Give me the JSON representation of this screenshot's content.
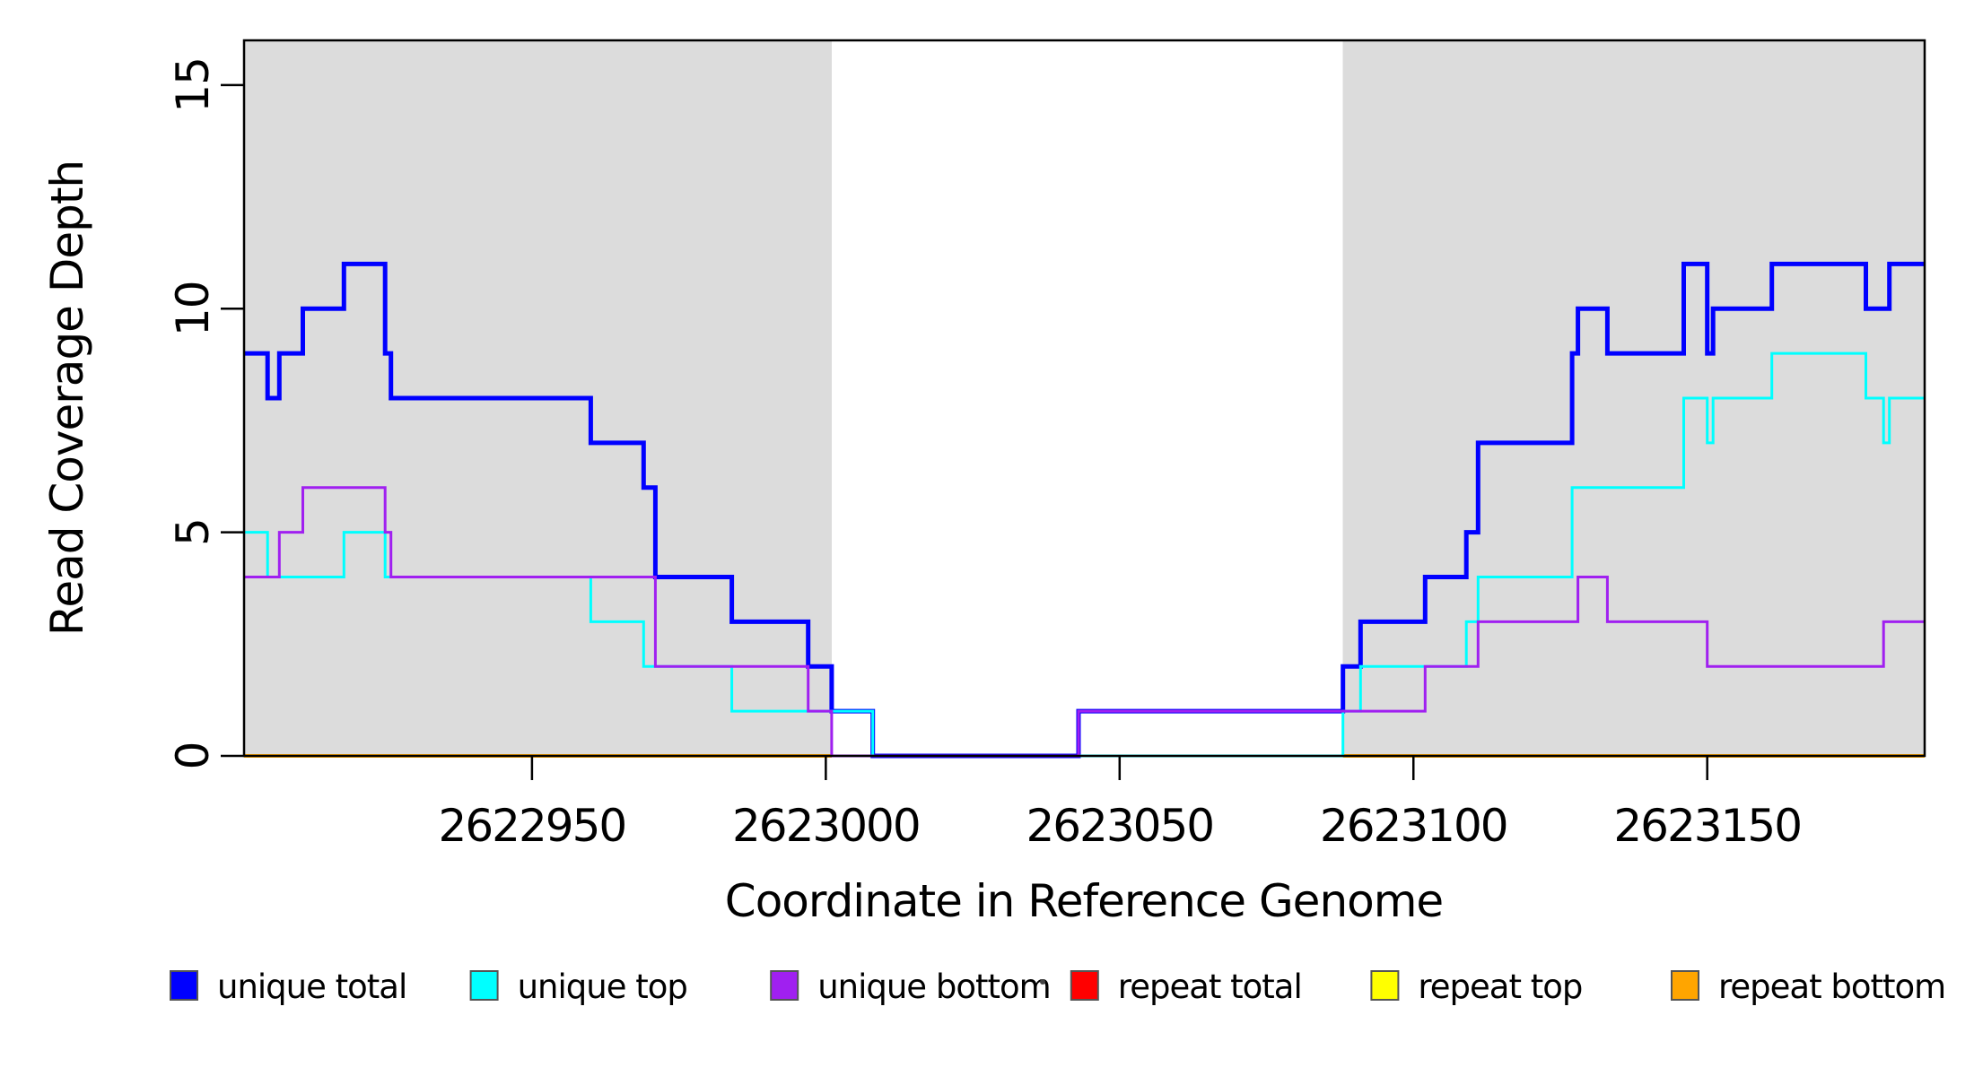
{
  "figure": {
    "x_axis_label": "Coordinate in Reference Genome",
    "y_axis_label": "Read Coverage Depth"
  },
  "chart_data": {
    "type": "line",
    "subtype": "step",
    "title": "",
    "xlabel": "Coordinate in Reference Genome",
    "ylabel": "Read Coverage Depth",
    "xlim": [
      2622901,
      2623187
    ],
    "ylim": [
      0,
      16
    ],
    "x_ticks": [
      2622950,
      2623000,
      2623050,
      2623100,
      2623150
    ],
    "y_ticks": [
      0,
      5,
      10,
      15
    ],
    "grid": false,
    "legend_position": "bottom",
    "plot_border_color": "#000000",
    "shaded_regions": [
      {
        "name": "repeat-region-left",
        "x0": 2622901,
        "x1": 2623001,
        "color": "#DCDCDC"
      },
      {
        "name": "repeat-region-right",
        "x0": 2623088,
        "x1": 2623187,
        "color": "#DCDCDC"
      }
    ],
    "draw_order": [
      3,
      4,
      5,
      0,
      1,
      2
    ],
    "series": [
      {
        "name": "unique total",
        "color": "#0000FF",
        "width": 5,
        "points": [
          [
            2622901,
            9
          ],
          [
            2622905,
            8
          ],
          [
            2622907,
            9
          ],
          [
            2622911,
            10
          ],
          [
            2622918,
            11
          ],
          [
            2622925,
            9
          ],
          [
            2622926,
            8
          ],
          [
            2622960,
            7
          ],
          [
            2622969,
            6
          ],
          [
            2622971,
            4
          ],
          [
            2622984,
            3
          ],
          [
            2622997,
            2
          ],
          [
            2623001,
            1
          ],
          [
            2623008,
            0
          ],
          [
            2623043,
            1
          ],
          [
            2623088,
            2
          ],
          [
            2623091,
            3
          ],
          [
            2623102,
            4
          ],
          [
            2623109,
            5
          ],
          [
            2623111,
            7
          ],
          [
            2623127,
            9
          ],
          [
            2623128,
            10
          ],
          [
            2623133,
            9
          ],
          [
            2623146,
            11
          ],
          [
            2623150,
            9
          ],
          [
            2623151,
            10
          ],
          [
            2623161,
            11
          ],
          [
            2623177,
            10
          ],
          [
            2623181,
            11
          ]
        ]
      },
      {
        "name": "unique top",
        "color": "#00FFFF",
        "width": 3,
        "points": [
          [
            2622901,
            5
          ],
          [
            2622905,
            4
          ],
          [
            2622918,
            5
          ],
          [
            2622925,
            4
          ],
          [
            2622960,
            3
          ],
          [
            2622969,
            2
          ],
          [
            2622984,
            1
          ],
          [
            2623008,
            0
          ],
          [
            2623088,
            1
          ],
          [
            2623091,
            2
          ],
          [
            2623109,
            3
          ],
          [
            2623111,
            4
          ],
          [
            2623127,
            6
          ],
          [
            2623146,
            8
          ],
          [
            2623150,
            7
          ],
          [
            2623151,
            8
          ],
          [
            2623161,
            9
          ],
          [
            2623177,
            8
          ],
          [
            2623180,
            7
          ],
          [
            2623181,
            8
          ]
        ]
      },
      {
        "name": "unique bottom",
        "color": "#A020F0",
        "width": 3,
        "points": [
          [
            2622901,
            4
          ],
          [
            2622907,
            5
          ],
          [
            2622911,
            6
          ],
          [
            2622925,
            5
          ],
          [
            2622926,
            4
          ],
          [
            2622971,
            2
          ],
          [
            2622997,
            1
          ],
          [
            2623001,
            0
          ],
          [
            2623043,
            1
          ],
          [
            2623102,
            2
          ],
          [
            2623111,
            3
          ],
          [
            2623128,
            4
          ],
          [
            2623133,
            3
          ],
          [
            2623150,
            2
          ],
          [
            2623180,
            3
          ]
        ]
      },
      {
        "name": "repeat total",
        "color": "#FF0000",
        "width": 3,
        "segments": [
          [
            [
              2622901,
              0
            ],
            [
              2623001,
              0
            ]
          ],
          [
            [
              2623088,
              0
            ],
            [
              2623187,
              0
            ]
          ]
        ]
      },
      {
        "name": "repeat top",
        "color": "#FFFF00",
        "width": 3,
        "segments": [
          [
            [
              2622901,
              0
            ],
            [
              2623001,
              0
            ]
          ],
          [
            [
              2623088,
              0
            ],
            [
              2623187,
              0
            ]
          ]
        ]
      },
      {
        "name": "repeat bottom",
        "color": "#FFA500",
        "width": 4,
        "segments": [
          [
            [
              2622901,
              0
            ],
            [
              2623001,
              0
            ]
          ],
          [
            [
              2623088,
              0
            ],
            [
              2623187,
              0
            ]
          ]
        ]
      }
    ]
  },
  "legend": {
    "items": [
      {
        "label": "unique total",
        "color": "#0000FF"
      },
      {
        "label": "unique top",
        "color": "#00FFFF"
      },
      {
        "label": "unique bottom",
        "color": "#A020F0"
      },
      {
        "label": "repeat total",
        "color": "#FF0000"
      },
      {
        "label": "repeat top",
        "color": "#FFFF00"
      },
      {
        "label": "repeat bottom",
        "color": "#FFA500"
      }
    ]
  }
}
